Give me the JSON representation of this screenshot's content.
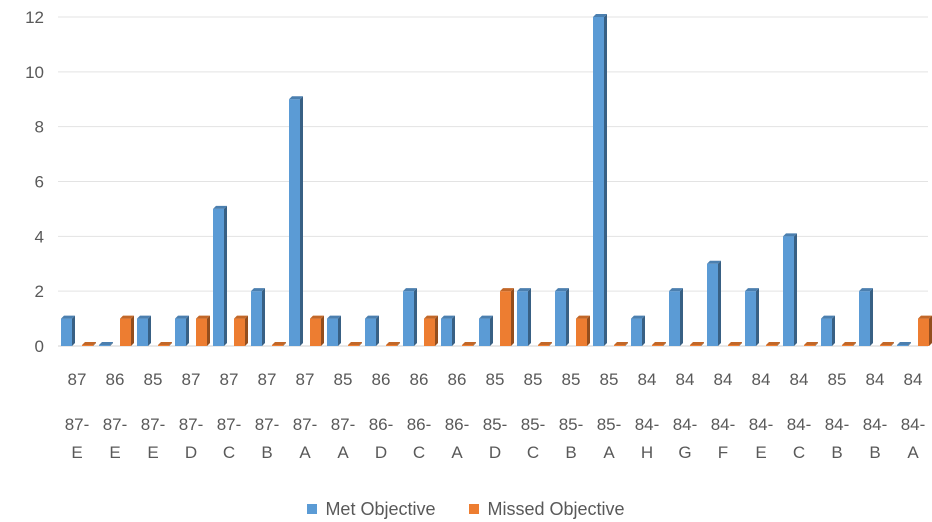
{
  "chart_data": {
    "type": "bar",
    "title": "",
    "xlabel": "",
    "ylabel": "",
    "ylim": [
      0,
      12
    ],
    "yticks": [
      0,
      2,
      4,
      6,
      8,
      10,
      12
    ],
    "grid": true,
    "legend_position": "bottom",
    "categories_outer": [
      "87",
      "86",
      "85",
      "87",
      "87",
      "87",
      "87",
      "85",
      "86",
      "86",
      "86",
      "85",
      "85",
      "85",
      "85",
      "84",
      "84",
      "84",
      "84",
      "84",
      "85",
      "84",
      "84"
    ],
    "categories_inner_top": [
      "87-",
      "87-",
      "87-",
      "87-",
      "87-",
      "87-",
      "87-",
      "87-",
      "86-",
      "86-",
      "86-",
      "85-",
      "85-",
      "85-",
      "85-",
      "84-",
      "84-",
      "84-",
      "84-",
      "84-",
      "84-",
      "84-",
      "84-"
    ],
    "categories_inner_bottom": [
      "E",
      "E",
      "E",
      "D",
      "C",
      "B",
      "A",
      "A",
      "D",
      "C",
      "A",
      "D",
      "C",
      "B",
      "A",
      "H",
      "G",
      "F",
      "E",
      "C",
      "B",
      "B",
      "A"
    ],
    "series": [
      {
        "name": "Met Objective",
        "color": "#5B9BD5",
        "values": [
          1,
          0,
          1,
          1,
          5,
          2,
          9,
          1,
          1,
          2,
          1,
          1,
          2,
          2,
          12,
          1,
          2,
          3,
          2,
          4,
          1,
          2,
          0
        ]
      },
      {
        "name": "Missed Objective",
        "color": "#ED7D31",
        "values": [
          0,
          1,
          0,
          1,
          1,
          0,
          1,
          0,
          0,
          1,
          0,
          2,
          0,
          1,
          0,
          0,
          0,
          0,
          0,
          0,
          0,
          0,
          1
        ]
      }
    ]
  }
}
